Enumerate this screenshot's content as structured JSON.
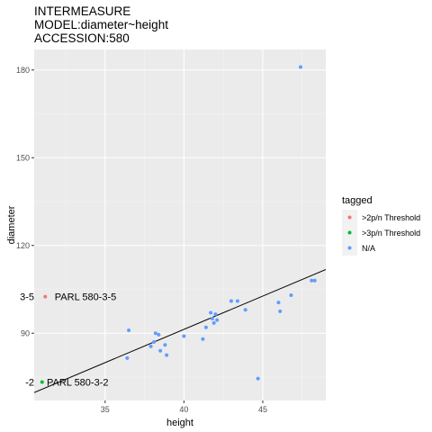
{
  "chart_data": {
    "type": "scatter",
    "title_lines": [
      "INTERMEASURE",
      "MODEL:diameter~height",
      "ACCESSION:580"
    ],
    "xlabel": "height",
    "ylabel": "diameter",
    "xlim": [
      30.5,
      49
    ],
    "ylim": [
      67,
      187
    ],
    "x_ticks": [
      35,
      40,
      45
    ],
    "y_ticks": [
      90,
      120,
      150,
      180
    ],
    "legend": {
      "title": "tagged",
      "placement": "right",
      "entries": [
        {
          "label": ">2p/n Threshold",
          "color": "#F8766D"
        },
        {
          "label": ">3p/n Threshold",
          "color": "#00BA38"
        },
        {
          "label": "N/A",
          "color": "#619CFF"
        }
      ]
    },
    "regression_line": {
      "x": [
        30.5,
        49
      ],
      "y": [
        69.7,
        111.8
      ],
      "color": "#000000"
    },
    "series": [
      {
        "name": ">2p/n Threshold",
        "color": "#F8766D",
        "points": [
          {
            "x": 31.2,
            "y": 102.5
          }
        ]
      },
      {
        "name": ">3p/n Threshold",
        "color": "#00BA38",
        "points": [
          {
            "x": 31.0,
            "y": 73.3
          }
        ]
      },
      {
        "name": "N/A",
        "color": "#619CFF",
        "points": [
          {
            "x": 36.4,
            "y": 81.5
          },
          {
            "x": 36.5,
            "y": 91.0
          },
          {
            "x": 37.9,
            "y": 85.5
          },
          {
            "x": 38.1,
            "y": 87.0
          },
          {
            "x": 38.2,
            "y": 90.0
          },
          {
            "x": 38.4,
            "y": 89.5
          },
          {
            "x": 38.5,
            "y": 84.0
          },
          {
            "x": 38.8,
            "y": 86.0
          },
          {
            "x": 38.9,
            "y": 82.5
          },
          {
            "x": 40.0,
            "y": 89.0
          },
          {
            "x": 41.2,
            "y": 88.0
          },
          {
            "x": 41.4,
            "y": 92.0
          },
          {
            "x": 41.7,
            "y": 97.0
          },
          {
            "x": 41.8,
            "y": 95.0
          },
          {
            "x": 41.9,
            "y": 93.5
          },
          {
            "x": 42.0,
            "y": 96.5
          },
          {
            "x": 42.1,
            "y": 94.5
          },
          {
            "x": 43.0,
            "y": 101.0
          },
          {
            "x": 43.4,
            "y": 101.0
          },
          {
            "x": 43.9,
            "y": 98.0
          },
          {
            "x": 44.7,
            "y": 74.5
          },
          {
            "x": 46.0,
            "y": 100.5
          },
          {
            "x": 46.1,
            "y": 97.5
          },
          {
            "x": 46.8,
            "y": 103.0
          },
          {
            "x": 47.4,
            "y": 181.0
          },
          {
            "x": 48.1,
            "y": 108.0
          },
          {
            "x": 48.3,
            "y": 108.0
          }
        ]
      }
    ],
    "annotations": [
      {
        "text": "PARL 580-3-5",
        "x": 31.8,
        "y": 102.5
      },
      {
        "text": "3-5",
        "x": 30.5,
        "y": 102.5,
        "anchor": "end"
      },
      {
        "text": "PARL 580-3-2",
        "x": 31.3,
        "y": 73.3
      },
      {
        "text": "-2",
        "x": 30.5,
        "y": 73.3,
        "anchor": "end"
      }
    ]
  }
}
